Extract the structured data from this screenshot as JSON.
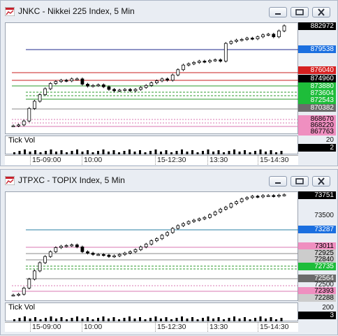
{
  "windows": [
    {
      "title": "JNKC - Nikkei 225 Index, 5 Min",
      "indicator_label": "Tick Vol",
      "x_labels": [
        "15-09:00",
        "10:00",
        "15-12:30",
        "13:30",
        "15-14:30"
      ],
      "price_tags": [
        {
          "text": "882972",
          "bg": "#000000",
          "fg": "#ffffff"
        },
        {
          "text": "879538",
          "bg": "#1b6fe0",
          "fg": "#ffffff"
        },
        {
          "text": "876040",
          "bg": "#d62020",
          "fg": "#ffffff"
        },
        {
          "text": "874960",
          "bg": "#000000",
          "fg": "#ffffff"
        },
        {
          "text": "873880",
          "bg": "#1ebd3a",
          "fg": "#ffffff"
        },
        {
          "text": "873604",
          "bg": "#1ebd3a",
          "fg": "#ffffff"
        },
        {
          "text": "872543",
          "bg": "#1ebd3a",
          "fg": "#ffffff"
        },
        {
          "text": "870382",
          "bg": "#6b6b6b",
          "fg": "#ffffff"
        },
        {
          "text": "868670",
          "bg": "#ef8fc0",
          "fg": "#000000"
        },
        {
          "text": "868220",
          "bg": "#ef8fc0",
          "fg": "#000000"
        },
        {
          "text": "867763",
          "bg": "#ef8fc0",
          "fg": "#000000"
        }
      ],
      "vol_labels": [
        "20",
        "2"
      ]
    },
    {
      "title": "JTPXC - TOPIX Index, 5 Min",
      "indicator_label": "Tick Vol",
      "x_labels": [
        "15-09:00",
        "10:00",
        "15-12:30",
        "13:30",
        "15-14:30"
      ],
      "price_tags": [
        {
          "text": "73751",
          "bg": "#000000",
          "fg": "#ffffff"
        },
        {
          "text": "73500",
          "bg": "",
          "fg": "#111111"
        },
        {
          "text": "73287",
          "bg": "#1b6fe0",
          "fg": "#ffffff"
        },
        {
          "text": "73011",
          "bg": "#ef8fc0",
          "fg": "#000000"
        },
        {
          "text": "72925",
          "bg": "#cccccc",
          "fg": "#000000"
        },
        {
          "text": "72840",
          "bg": "#cccccc",
          "fg": "#000000"
        },
        {
          "text": "72735",
          "bg": "#1ebd3a",
          "fg": "#ffffff"
        },
        {
          "text": "72564",
          "bg": "#6b6b6b",
          "fg": "#ffffff"
        },
        {
          "text": "72500",
          "bg": "",
          "fg": "#111111"
        },
        {
          "text": "72393",
          "bg": "#ef8fc0",
          "fg": "#000000"
        },
        {
          "text": "72288",
          "bg": "#cccccc",
          "fg": "#000000"
        }
      ],
      "vol_labels": [
        "200",
        "3"
      ]
    }
  ],
  "colors": {
    "up_candle": "#ffffff",
    "down_candle": "#000000",
    "line_blue": "#1f2a8c",
    "line_red": "#c81f1f",
    "line_green": "#2e9b2e",
    "line_pink": "#d977b0",
    "line_gray": "#8a8a8a",
    "line_teal": "#2a7fa3"
  },
  "chart_data": [
    {
      "type": "candlestick",
      "title": "JNKC - Nikkei 225 Index, 5 Min",
      "y_range": [
        866500,
        883500
      ],
      "close_series": [
        867763,
        867900,
        868500,
        870400,
        871500,
        872500,
        873400,
        874200,
        874500,
        874700,
        874600,
        874900,
        874900,
        874100,
        873800,
        873900,
        874000,
        873700,
        873300,
        873100,
        873200,
        873300,
        873100,
        873300,
        873600,
        873900,
        874300,
        874600,
        874900,
        874700,
        875500,
        876300,
        877000,
        877200,
        877400,
        877600,
        877500,
        877700,
        877800,
        877600,
        880300,
        880600,
        880800,
        880900,
        881100,
        881000,
        881300,
        881600,
        881700,
        881300,
        882200,
        882972
      ]
    },
    {
      "type": "candlestick",
      "title": "JTPXC - TOPIX Index, 5 Min",
      "y_range": [
        72200,
        73800
      ],
      "close_series": [
        72288,
        72300,
        72390,
        72520,
        72640,
        72760,
        72850,
        72920,
        72980,
        73000,
        73010,
        73020,
        72990,
        72920,
        72900,
        72880,
        72880,
        72870,
        72850,
        72860,
        72880,
        72900,
        72920,
        72950,
        72990,
        73030,
        73080,
        73110,
        73160,
        73200,
        73260,
        73300,
        73330,
        73360,
        73380,
        73400,
        73420,
        73460,
        73500,
        73540,
        73570,
        73620,
        73650,
        73690,
        73710,
        73730,
        73720,
        73740,
        73740,
        73730,
        73745,
        73751
      ]
    }
  ]
}
